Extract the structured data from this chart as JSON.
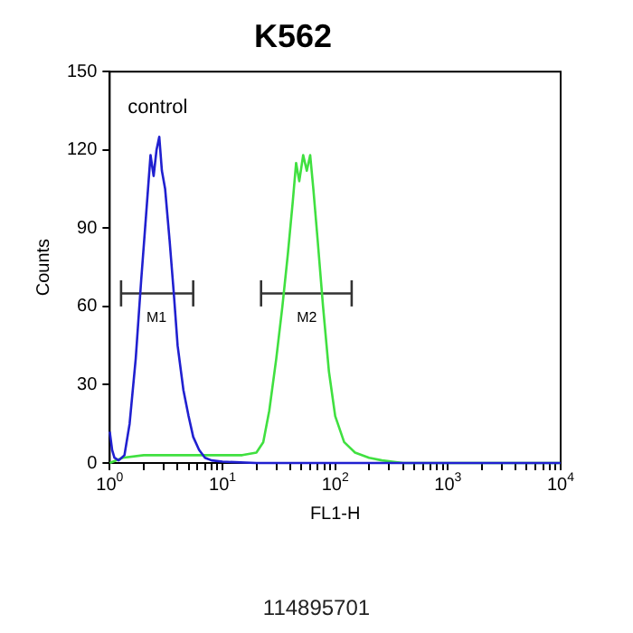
{
  "chart_data": {
    "type": "line",
    "title": "K562",
    "xlabel": "FL1-H",
    "ylabel": "Counts",
    "log": "x",
    "grid": false,
    "legend": false,
    "marker": "none",
    "line_style": "solid",
    "xlim": [
      1,
      10000
    ],
    "xticks": [
      {
        "value": 1,
        "label": "10$^{0}$"
      },
      {
        "value": 2,
        "label": null
      },
      {
        "value": 3,
        "label": null
      },
      {
        "value": 4,
        "label": null
      },
      {
        "value": 5,
        "label": null
      },
      {
        "value": 6,
        "label": null
      },
      {
        "value": 7,
        "label": null
      },
      {
        "value": 8,
        "label": null
      },
      {
        "value": 9,
        "label": null
      },
      {
        "value": 10,
        "label": "10$^{1}$"
      },
      {
        "value": 20,
        "label": null
      },
      {
        "value": 30,
        "label": null
      },
      {
        "value": 40,
        "label": null
      },
      {
        "value": 50,
        "label": null
      },
      {
        "value": 60,
        "label": null
      },
      {
        "value": 70,
        "label": null
      },
      {
        "value": 80,
        "label": null
      },
      {
        "value": 90,
        "label": null
      },
      {
        "value": 100,
        "label": "10$^{2}$"
      },
      {
        "value": 200,
        "label": null
      },
      {
        "value": 300,
        "label": null
      },
      {
        "value": 400,
        "label": null
      },
      {
        "value": 500,
        "label": null
      },
      {
        "value": 600,
        "label": null
      },
      {
        "value": 700,
        "label": null
      },
      {
        "value": 800,
        "label": null
      },
      {
        "value": 900,
        "label": null
      },
      {
        "value": 1000,
        "label": "10$^{3}$"
      },
      {
        "value": 2000,
        "label": null
      },
      {
        "value": 3000,
        "label": null
      },
      {
        "value": 4000,
        "label": null
      },
      {
        "value": 5000,
        "label": null
      },
      {
        "value": 6000,
        "label": null
      },
      {
        "value": 7000,
        "label": null
      },
      {
        "value": 8000,
        "label": null
      },
      {
        "value": 9000,
        "label": null
      },
      {
        "value": 10000,
        "label": "10$^{4}$"
      }
    ],
    "ylim": [
      0,
      150
    ],
    "yticks": [
      0,
      30,
      60,
      90,
      120,
      150
    ],
    "series": [
      {
        "name": "control",
        "color": "#2020d0",
        "x": [
          1,
          1.05,
          1.1,
          1.2,
          1.35,
          1.5,
          1.7,
          1.9,
          2.1,
          2.3,
          2.45,
          2.6,
          2.75,
          2.9,
          3.1,
          3.4,
          3.7,
          4,
          4.5,
          5,
          5.5,
          6.2,
          7,
          8,
          10,
          20,
          100,
          10000
        ],
        "values": [
          12,
          5,
          2,
          1,
          3,
          15,
          40,
          70,
          95,
          118,
          110,
          120,
          125,
          112,
          105,
          85,
          65,
          45,
          28,
          18,
          10,
          5,
          2,
          1,
          0.5,
          0,
          0,
          0
        ]
      },
      {
        "color": "#40e040",
        "x": [
          1,
          1.3,
          2,
          5,
          10,
          15,
          20,
          23,
          26,
          30,
          34,
          38,
          42,
          45,
          48,
          52,
          56,
          60,
          64,
          70,
          78,
          88,
          100,
          120,
          150,
          200,
          260,
          400,
          10000
        ],
        "values": [
          0,
          2,
          3,
          3,
          3,
          3,
          4,
          8,
          20,
          40,
          60,
          80,
          100,
          115,
          108,
          118,
          112,
          118,
          105,
          85,
          60,
          35,
          18,
          8,
          4,
          2,
          1,
          0,
          0
        ]
      },
      {
        "color": "#333333",
        "x": [
          1.26,
          5.5
        ],
        "values": [
          65,
          65
        ],
        "errors": [
          5,
          5
        ]
      },
      {
        "color": "#333333",
        "x": [
          22,
          140
        ],
        "values": [
          65,
          65
        ],
        "errors": [
          5,
          5
        ]
      }
    ],
    "annotations": [
      {
        "text": "M1",
        "x": 2.6,
        "y": 65
      },
      {
        "text": "M2",
        "x": 56,
        "y": 65
      },
      "114895701"
    ]
  }
}
